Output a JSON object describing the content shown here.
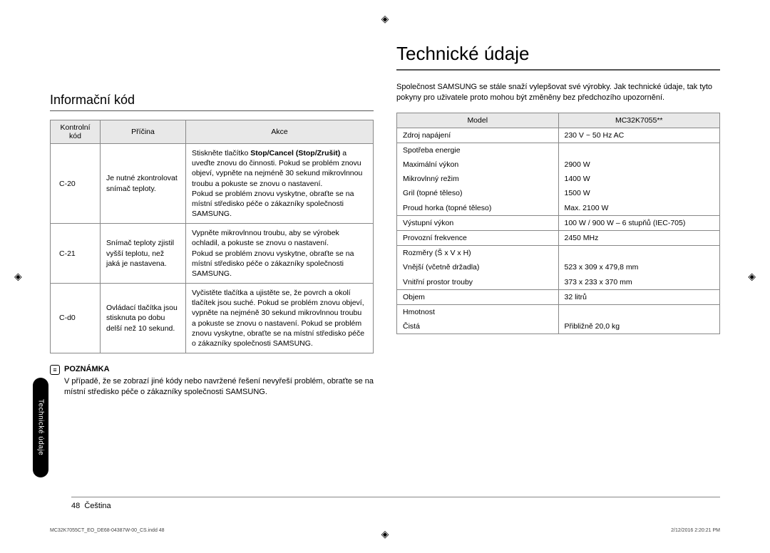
{
  "registration_mark": "◈",
  "side_tab": "Technické údaje",
  "section": {
    "subtitle": "Informační kód",
    "main_title": "Technické údaje",
    "intro": "Společnost SAMSUNG se stále snaží vylepšovat své výrobky. Jak technické údaje, tak tyto pokyny pro uživatele proto mohou být změněny bez předchozího upozornění."
  },
  "info_table": {
    "headers": {
      "code": "Kontrolní kód",
      "cause": "Příčina",
      "action": "Akce"
    },
    "rows": [
      {
        "code": "C-20",
        "cause": "Je nutné zkontrolovat snímač teploty.",
        "action_pre": "Stiskněte tlačítko ",
        "action_bold": "Stop/Cancel (Stop/Zrušit)",
        "action_post": " a uveďte znovu do činnosti. Pokud se problém znovu objeví, vypněte na nejméně 30 sekund mikrovlnnou troubu a pokuste se znovu o nastavení.\nPokud se problém znovu vyskytne, obraťte se na místní středisko péče o zákazníky společnosti SAMSUNG."
      },
      {
        "code": "C-21",
        "cause": "Snímač teploty zjistil vyšší teplotu, než jaká je nastavena.",
        "action": "Vypněte mikrovlnnou troubu, aby se výrobek ochladil, a pokuste se znovu o nastavení.\nPokud se problém znovu vyskytne, obraťte se na místní středisko péče o zákazníky společnosti SAMSUNG."
      },
      {
        "code": "C-d0",
        "cause": "Ovládací tlačítka jsou stisknuta po dobu delší než 10 sekund.",
        "action": "Vyčistěte tlačítka a ujistěte se, že povrch a okolí tlačítek jsou suché. Pokud se problém znovu objeví, vypněte na nejméně 30 sekund mikrovlnnou troubu a pokuste se znovu o nastavení. Pokud se problém znovu vyskytne, obraťte se na místní středisko péče o zákazníky společnosti SAMSUNG."
      }
    ]
  },
  "note": {
    "label": "POZNÁMKA",
    "text": "V případě, že se zobrazí jiné kódy nebo navržené řešení nevyřeší problém, obraťte se na místní středisko péče o zákazníky společnosti SAMSUNG."
  },
  "specs_table": {
    "headers": {
      "model": "Model",
      "value": "MC32K7055**"
    },
    "rows": [
      {
        "label": "Zdroj napájení",
        "value": "230 V ~ 50 Hz AC",
        "indent": 0
      },
      {
        "label": "Spotřeba energie",
        "value": "",
        "indent": 0,
        "group_top": true
      },
      {
        "label": "Maximální výkon",
        "value": "2900 W",
        "indent": 1,
        "group_mid": true
      },
      {
        "label": "Mikrovlnný režim",
        "value": "1400 W",
        "indent": 1,
        "group_mid": true
      },
      {
        "label": "Gril (topné těleso)",
        "value": "1500 W",
        "indent": 1,
        "group_mid": true
      },
      {
        "label": "Proud horka (topné těleso)",
        "value": "Max. 2100 W",
        "indent": 1,
        "group_bot": true
      },
      {
        "label": "Výstupní výkon",
        "value": "100 W / 900 W – 6 stupňů (IEC-705)",
        "indent": 0
      },
      {
        "label": "Provozní frekvence",
        "value": "2450 MHz",
        "indent": 0
      },
      {
        "label": "Rozměry (Š x V x H)",
        "value": "",
        "indent": 0,
        "group_top": true
      },
      {
        "label": "Vnější (včetně držadla)",
        "value": "523 x 309 x 479,8 mm",
        "indent": 1,
        "group_mid": true
      },
      {
        "label": "Vnitřní prostor trouby",
        "value": "373 x 233 x 370 mm",
        "indent": 1,
        "group_bot": true
      },
      {
        "label": "Objem",
        "value": "32 litrů",
        "indent": 0
      },
      {
        "label": "Hmotnost",
        "value": "",
        "indent": 0,
        "group_top": true
      },
      {
        "label": "Čistá",
        "value": "Přibližně 20,0 kg",
        "indent": 1,
        "group_bot": true
      }
    ]
  },
  "footer": {
    "page": "48",
    "lang": "Čeština"
  },
  "tiny_footer": {
    "left": "MC32K7055CT_EO_DE68-04387W-00_CS.indd   48",
    "right": "2/12/2016   2:20:21 PM"
  }
}
